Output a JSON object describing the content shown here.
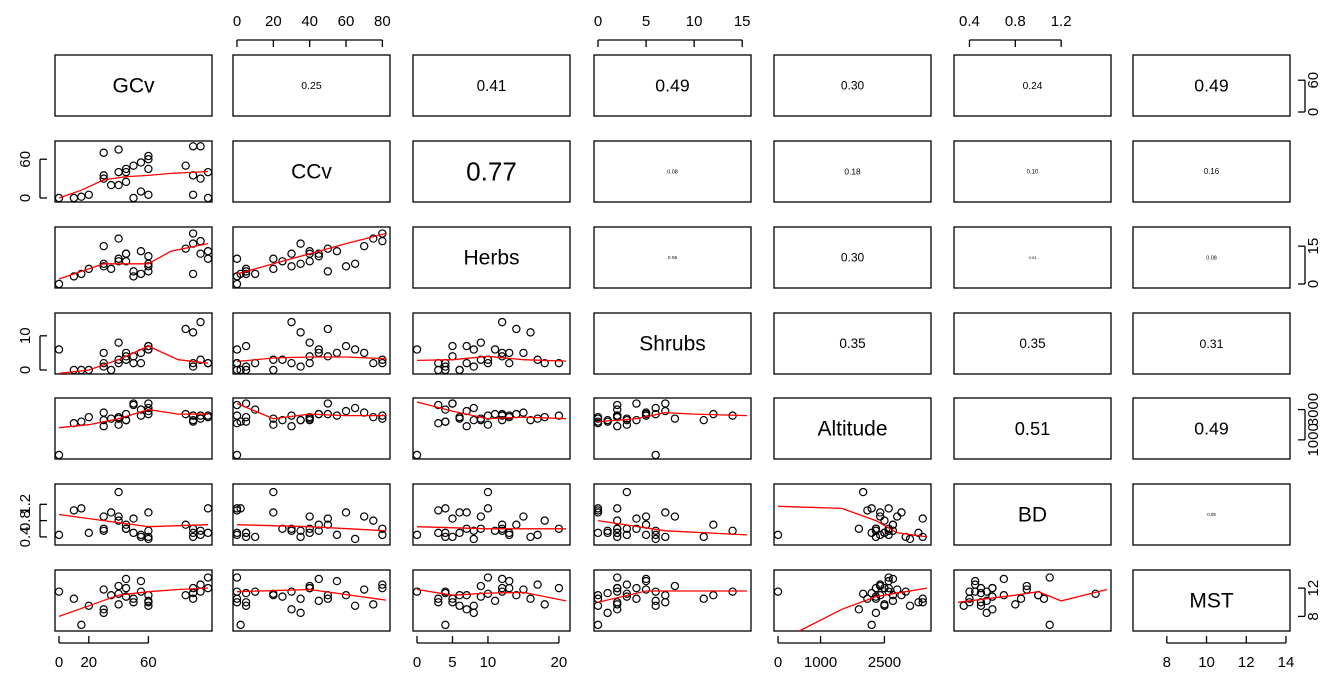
{
  "chart_data": {
    "type": "scatter",
    "plot_kind": "scatterplot-matrix",
    "variables": [
      "GCv",
      "CCv",
      "Herbs",
      "Shrubs",
      "Altitude",
      "BD",
      "MST"
    ],
    "axis_ticks": {
      "top": [
        {
          "col": 1,
          "ticks": [
            "0",
            "20",
            "40",
            "60",
            "80"
          ]
        },
        {
          "col": 3,
          "ticks": [
            "0",
            "5",
            "10",
            "15"
          ]
        },
        {
          "col": 5,
          "ticks": [
            "0.4",
            "0.8",
            "1.2"
          ]
        }
      ],
      "bottom": [
        {
          "col": 0,
          "ticks": [
            "0",
            "20",
            "60"
          ]
        },
        {
          "col": 2,
          "ticks": [
            "0",
            "5",
            "10",
            "20"
          ]
        },
        {
          "col": 4,
          "ticks": [
            "0",
            "1000",
            "2500"
          ]
        },
        {
          "col": 6,
          "ticks": [
            "8",
            "10",
            "12",
            "14"
          ]
        }
      ],
      "left": [
        {
          "row": 1,
          "ticks": [
            "0",
            "60"
          ]
        },
        {
          "row": 3,
          "ticks": [
            "0",
            "10"
          ]
        },
        {
          "row": 5,
          "ticks": [
            "0.4",
            "0.8",
            "1.2"
          ]
        }
      ],
      "right": [
        {
          "row": 0,
          "ticks": [
            "0",
            "60"
          ]
        },
        {
          "row": 2,
          "ticks": [
            "0",
            "15"
          ]
        },
        {
          "row": 4,
          "ticks": [
            "1000",
            "3000"
          ]
        },
        {
          "row": 6,
          "ticks": [
            "8",
            "12"
          ]
        }
      ]
    },
    "correlations": [
      {
        "row": 0,
        "col": 1,
        "label": "0.25"
      },
      {
        "row": 0,
        "col": 2,
        "label": "0.41"
      },
      {
        "row": 0,
        "col": 3,
        "label": "0.49"
      },
      {
        "row": 0,
        "col": 4,
        "label": "0.30"
      },
      {
        "row": 0,
        "col": 5,
        "label": "0.24"
      },
      {
        "row": 0,
        "col": 6,
        "label": "0.49"
      },
      {
        "row": 1,
        "col": 2,
        "label": "0.77"
      },
      {
        "row": 1,
        "col": 3,
        "label": "0.08"
      },
      {
        "row": 1,
        "col": 4,
        "label": "0.18"
      },
      {
        "row": 1,
        "col": 5,
        "label": "0.10"
      },
      {
        "row": 1,
        "col": 6,
        "label": "0.16"
      },
      {
        "row": 2,
        "col": 3,
        "label": "0.06"
      },
      {
        "row": 2,
        "col": 4,
        "label": "0.30"
      },
      {
        "row": 2,
        "col": 5,
        "label": "0.03"
      },
      {
        "row": 2,
        "col": 6,
        "label": "0.08"
      },
      {
        "row": 3,
        "col": 4,
        "label": "0.35"
      },
      {
        "row": 3,
        "col": 5,
        "label": "0.35"
      },
      {
        "row": 3,
        "col": 6,
        "label": "0.31"
      },
      {
        "row": 4,
        "col": 5,
        "label": "0.51"
      },
      {
        "row": 4,
        "col": 6,
        "label": "0.49"
      },
      {
        "row": 5,
        "col": 6,
        "label": "0.05"
      }
    ],
    "ranges": {
      "GCv": [
        0,
        100
      ],
      "CCv": [
        0,
        82
      ],
      "Herbs": [
        0,
        21
      ],
      "Shrubs": [
        0,
        15.5
      ],
      "Altitude": [
        0,
        3500
      ],
      "BD": [
        0.3,
        1.6
      ],
      "MST": [
        6.5,
        14
      ]
    },
    "observations": {
      "GCv": [
        0,
        10,
        15,
        20,
        30,
        30,
        35,
        40,
        40,
        45,
        45,
        50,
        50,
        55,
        55,
        60,
        60,
        60,
        85,
        90,
        90,
        95,
        95,
        100,
        100,
        30,
        45,
        60,
        40,
        90
      ],
      "CCv": [
        0,
        0,
        2,
        5,
        35,
        30,
        20,
        20,
        40,
        45,
        40,
        0,
        50,
        55,
        10,
        60,
        65,
        5,
        50,
        80,
        35,
        30,
        80,
        0,
        40,
        70,
        25,
        45,
        75,
        5
      ],
      "Herbs": [
        0,
        3,
        4,
        6,
        8,
        7,
        6,
        10,
        9,
        12,
        12,
        3,
        5,
        13,
        4,
        7,
        8,
        5,
        14,
        20,
        16,
        12,
        17,
        10,
        13,
        15,
        9,
        11,
        18,
        4
      ],
      "Shrubs": [
        6,
        0,
        0,
        0,
        1,
        2,
        0,
        3,
        8,
        5,
        4,
        2,
        4,
        5,
        2,
        7,
        6,
        7,
        12,
        2,
        11,
        14,
        3,
        2,
        2,
        5,
        3,
        6,
        2,
        1
      ],
      "Altitude": [
        0,
        2100,
        2200,
        2500,
        2300,
        1900,
        2400,
        2000,
        2400,
        2700,
        2300,
        3300,
        3400,
        2600,
        3000,
        2900,
        3100,
        3400,
        2700,
        2600,
        2300,
        2600,
        2400,
        2600,
        2500,
        2800,
        2300,
        2700,
        2500,
        2200
      ],
      "BD": [
        0.45,
        1.05,
        1.1,
        0.5,
        0.55,
        0.6,
        1.0,
        1.5,
        0.9,
        0.7,
        0.6,
        0.5,
        0.85,
        0.45,
        0.4,
        1.0,
        0.35,
        0.4,
        0.7,
        0.6,
        0.4,
        0.55,
        0.45,
        1.1,
        0.5,
        0.9,
        0.6,
        0.55,
        0.8,
        0.5
      ],
      "MST": [
        11.5,
        10.5,
        6.8,
        9.5,
        8.5,
        9,
        11,
        11.2,
        12.3,
        13.3,
        12,
        10,
        10.5,
        13,
        11.5,
        11,
        9.5,
        10,
        11,
        12,
        10.5,
        11.5,
        12.5,
        13.5,
        12,
        11.8,
        10.8,
        10.2,
        9.7,
        11.3
      ]
    },
    "smoothers": [
      {
        "row": 1,
        "col": 0,
        "x": [
          0,
          15,
          30,
          45,
          60,
          75,
          100
        ],
        "y": [
          0,
          12,
          28,
          33,
          35,
          38,
          41
        ]
      },
      {
        "row": 2,
        "col": 0,
        "x": [
          0,
          15,
          30,
          45,
          60,
          75,
          100
        ],
        "y": [
          2,
          5,
          8,
          8,
          8,
          13,
          16
        ]
      },
      {
        "row": 2,
        "col": 1,
        "x": [
          0,
          20,
          40,
          60,
          82
        ],
        "y": [
          4,
          8,
          12,
          16,
          20
        ]
      },
      {
        "row": 3,
        "col": 0,
        "x": [
          0,
          20,
          40,
          60,
          80,
          100
        ],
        "y": [
          -1,
          0,
          3,
          7,
          3,
          2
        ]
      },
      {
        "row": 3,
        "col": 1,
        "x": [
          0,
          20,
          40,
          60,
          82
        ],
        "y": [
          2.5,
          3.5,
          3.8,
          3.8,
          3.3
        ]
      },
      {
        "row": 3,
        "col": 2,
        "x": [
          0,
          5,
          10,
          15,
          21
        ],
        "y": [
          2.8,
          3,
          4,
          3,
          2.6
        ]
      },
      {
        "row": 4,
        "col": 0,
        "x": [
          0,
          20,
          40,
          60,
          80,
          100
        ],
        "y": [
          1800,
          2000,
          2400,
          3000,
          2700,
          2700
        ]
      },
      {
        "row": 4,
        "col": 1,
        "x": [
          0,
          20,
          40,
          60,
          82
        ],
        "y": [
          3400,
          2400,
          2700,
          2600,
          2600
        ]
      },
      {
        "row": 4,
        "col": 2,
        "x": [
          0,
          5,
          10,
          15,
          21
        ],
        "y": [
          3500,
          2900,
          2400,
          2500,
          2400
        ]
      },
      {
        "row": 4,
        "col": 3,
        "x": [
          0,
          4,
          7,
          10,
          15.5
        ],
        "y": [
          2200,
          2400,
          2800,
          2700,
          2600
        ]
      },
      {
        "row": 5,
        "col": 0,
        "x": [
          0,
          30,
          60,
          100
        ],
        "y": [
          0.95,
          0.8,
          0.65,
          0.7
        ]
      },
      {
        "row": 5,
        "col": 1,
        "x": [
          0,
          40,
          82
        ],
        "y": [
          0.7,
          0.65,
          0.55
        ]
      },
      {
        "row": 5,
        "col": 2,
        "x": [
          0,
          10,
          21
        ],
        "y": [
          0.65,
          0.6,
          0.6
        ]
      },
      {
        "row": 5,
        "col": 3,
        "x": [
          0,
          7,
          15.5
        ],
        "y": [
          0.8,
          0.55,
          0.45
        ]
      },
      {
        "row": 5,
        "col": 4,
        "x": [
          0,
          1500,
          2300,
          2800,
          3500
        ],
        "y": [
          1.15,
          1.1,
          0.8,
          0.5,
          0.4
        ]
      },
      {
        "row": 6,
        "col": 0,
        "x": [
          0,
          20,
          40,
          60,
          80,
          100
        ],
        "y": [
          8,
          9.5,
          11,
          11.5,
          11.8,
          12
        ]
      },
      {
        "row": 6,
        "col": 1,
        "x": [
          0,
          40,
          82
        ],
        "y": [
          11.5,
          11.8,
          10.3
        ]
      },
      {
        "row": 6,
        "col": 2,
        "x": [
          0,
          5,
          10,
          15,
          21
        ],
        "y": [
          11.8,
          11,
          11.3,
          11.4,
          10.2
        ]
      },
      {
        "row": 6,
        "col": 3,
        "x": [
          0,
          5,
          15.5
        ],
        "y": [
          10,
          11.6,
          11.6
        ]
      },
      {
        "row": 6,
        "col": 4,
        "x": [
          500,
          1500,
          2300,
          3000,
          3500
        ],
        "y": [
          5.5,
          9,
          10.8,
          11.5,
          12
        ]
      },
      {
        "row": 6,
        "col": 5,
        "x": [
          0.3,
          0.8,
          1.0,
          1.2,
          1.6
        ],
        "y": [
          10,
          11,
          11.5,
          10.2,
          11.8
        ]
      }
    ],
    "colors": {
      "points": "#000000",
      "smoother": "#ff0000",
      "frame": "#000000"
    }
  }
}
